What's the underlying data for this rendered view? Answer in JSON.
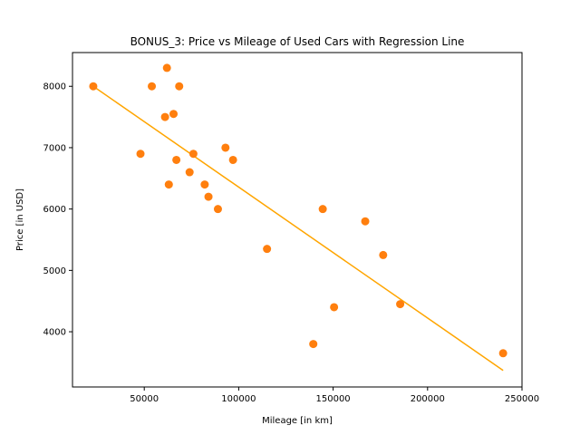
{
  "chart_data": {
    "type": "scatter",
    "title": "BONUS_3: Price vs Mileage of Used Cars with Regression Line",
    "xlabel": "Mileage [in km]",
    "ylabel": "Price [in USD]",
    "xlim": [
      12000,
      250000
    ],
    "ylim": [
      3100,
      8550
    ],
    "xticks": [
      50000,
      100000,
      150000,
      200000,
      250000
    ],
    "yticks": [
      4000,
      5000,
      6000,
      7000,
      8000
    ],
    "grid": false,
    "legend": "none",
    "point_color": "#ff7f0e",
    "line_color": "#ffa500",
    "points": [
      {
        "x": 23000,
        "y": 8000
      },
      {
        "x": 48000,
        "y": 6900
      },
      {
        "x": 54000,
        "y": 8000
      },
      {
        "x": 61000,
        "y": 7500
      },
      {
        "x": 62000,
        "y": 8300
      },
      {
        "x": 63000,
        "y": 6400
      },
      {
        "x": 65500,
        "y": 7550
      },
      {
        "x": 67000,
        "y": 6800
      },
      {
        "x": 68500,
        "y": 8000
      },
      {
        "x": 74000,
        "y": 6600
      },
      {
        "x": 76000,
        "y": 6900
      },
      {
        "x": 82000,
        "y": 6400
      },
      {
        "x": 84000,
        "y": 6200
      },
      {
        "x": 89000,
        "y": 6000
      },
      {
        "x": 93000,
        "y": 7000
      },
      {
        "x": 97000,
        "y": 6800
      },
      {
        "x": 115000,
        "y": 5350
      },
      {
        "x": 139500,
        "y": 3800
      },
      {
        "x": 144500,
        "y": 6000
      },
      {
        "x": 150500,
        "y": 4400
      },
      {
        "x": 167000,
        "y": 5800
      },
      {
        "x": 176500,
        "y": 5250
      },
      {
        "x": 185500,
        "y": 4450
      },
      {
        "x": 240000,
        "y": 3650
      }
    ],
    "regression_line": {
      "x": [
        23000,
        240000
      ],
      "y": [
        8000,
        3370
      ]
    }
  }
}
